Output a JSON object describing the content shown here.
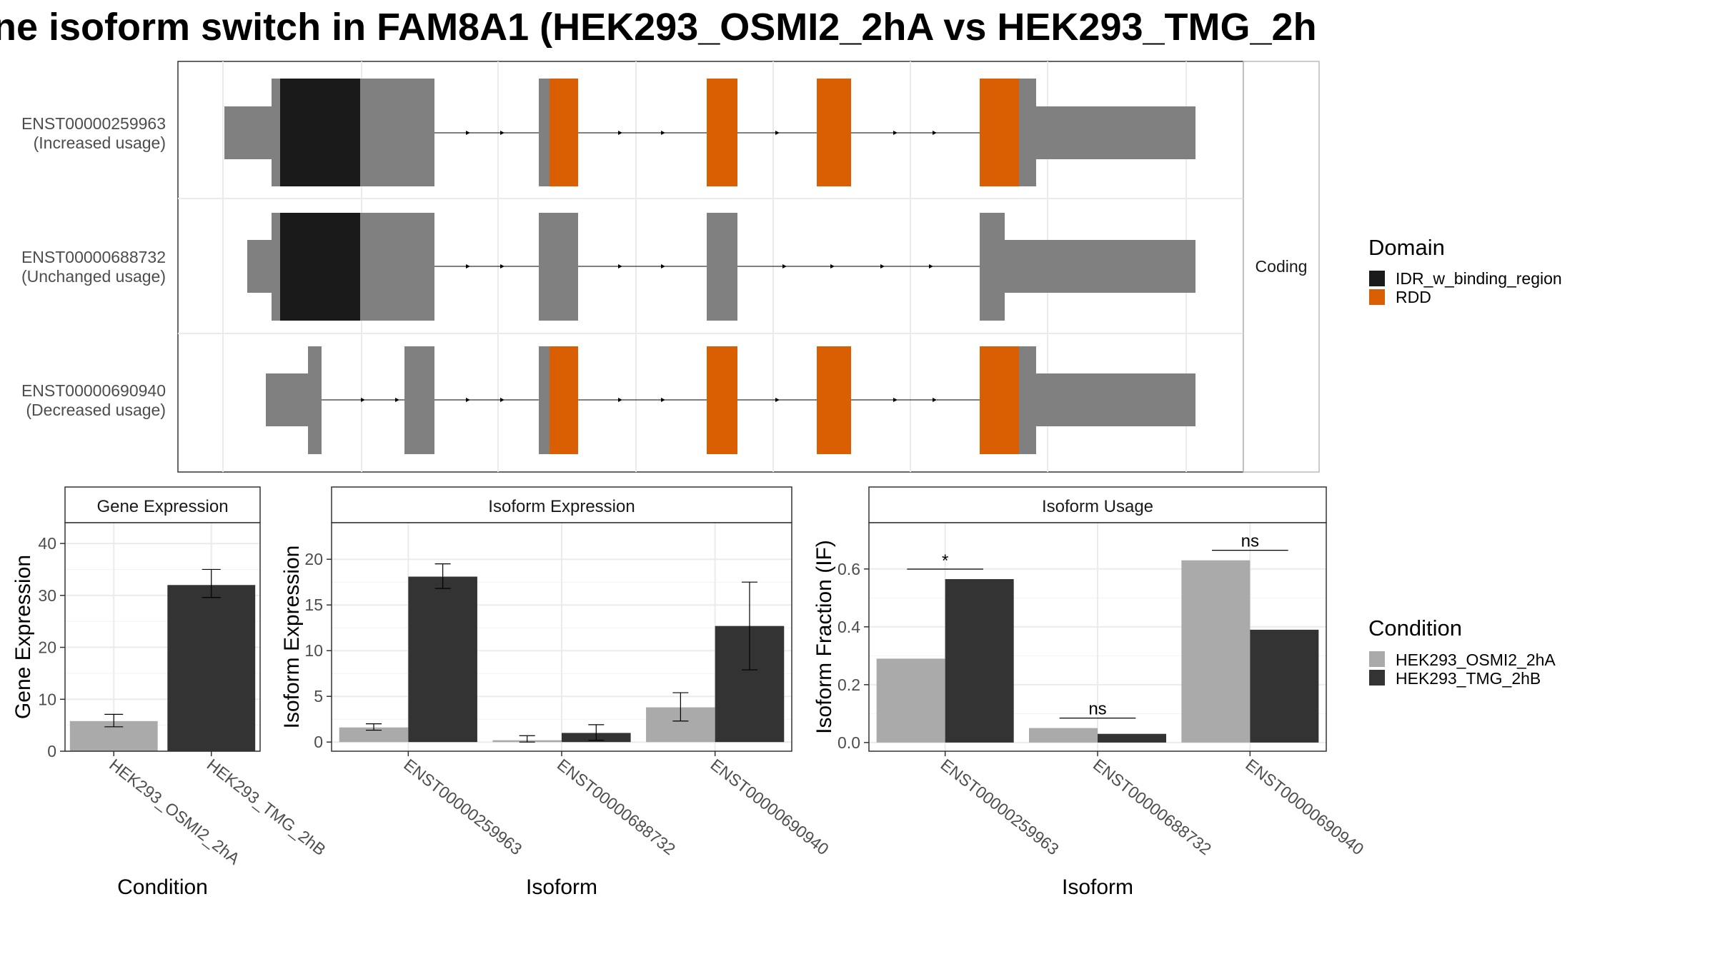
{
  "title": "ne isoform switch in FAM8A1 (HEK293_OSMI2_2hA vs HEK293_TMG_2h",
  "colors": {
    "exon": "#808080",
    "idr": "#1a1a1a",
    "rdd": "#d95f02",
    "cond_a": "#aaaaaa",
    "cond_b": "#333333"
  },
  "transcript_panel": {
    "facet_label": "Coding",
    "transcripts": [
      {
        "id": "ENST00000259963",
        "usage": "(Increased usage)"
      },
      {
        "id": "ENST00000688732",
        "usage": "(Unchanged usage)"
      },
      {
        "id": "ENST00000690940",
        "usage": "(Decreased usage)"
      }
    ]
  },
  "legends": {
    "domain": {
      "title": "Domain",
      "entries": [
        {
          "label": "IDR_w_binding_region",
          "color": "#1a1a1a"
        },
        {
          "label": "RDD",
          "color": "#d95f02"
        }
      ]
    },
    "condition": {
      "title": "Condition",
      "entries": [
        {
          "label": "HEK293_OSMI2_2hA",
          "color": "#aaaaaa"
        },
        {
          "label": "HEK293_TMG_2hB",
          "color": "#333333"
        }
      ]
    }
  },
  "chart_data": [
    {
      "type": "bar",
      "title": "Gene Expression",
      "xlabel": "Condition",
      "ylabel": "Gene Expression",
      "ylim": [
        0,
        44
      ],
      "yticks": [
        0,
        10,
        20,
        30,
        40
      ],
      "categories": [
        "HEK293_OSMI2_2hA",
        "HEK293_TMG_2hB"
      ],
      "values": [
        5.8,
        32
      ],
      "errors": [
        [
          4.7,
          7.1
        ],
        [
          29.6,
          35
        ]
      ]
    },
    {
      "type": "bar",
      "title": "Isoform Expression",
      "xlabel": "Isoform",
      "ylabel": "Isoform Expression",
      "ylim": [
        -1,
        24
      ],
      "yticks": [
        0,
        5,
        10,
        15,
        20
      ],
      "categories": [
        "ENST00000259963",
        "ENST00000688732",
        "ENST00000690940"
      ],
      "series": [
        {
          "name": "HEK293_OSMI2_2hA",
          "values": [
            1.6,
            0.2,
            3.8
          ],
          "errors": [
            [
              1.3,
              2.0
            ],
            [
              0,
              0.7
            ],
            [
              2.3,
              5.4
            ]
          ]
        },
        {
          "name": "HEK293_TMG_2hB",
          "values": [
            18.1,
            1.0,
            12.7
          ],
          "errors": [
            [
              16.8,
              19.5
            ],
            [
              0.2,
              1.9
            ],
            [
              7.9,
              17.5
            ]
          ]
        }
      ]
    },
    {
      "type": "bar",
      "title": "Isoform Usage",
      "xlabel": "Isoform",
      "ylabel": "Isoform Fraction (IF)",
      "ylim": [
        -0.03,
        0.76
      ],
      "yticks": [
        "0.0",
        "0.2",
        "0.4",
        "0.6"
      ],
      "categories": [
        "ENST00000259963",
        "ENST00000688732",
        "ENST00000690940"
      ],
      "series": [
        {
          "name": "HEK293_OSMI2_2hA",
          "values": [
            0.29,
            0.05,
            0.63
          ]
        },
        {
          "name": "HEK293_TMG_2hB",
          "values": [
            0.565,
            0.03,
            0.39
          ]
        }
      ],
      "significance": [
        "*",
        "ns",
        "ns"
      ]
    }
  ]
}
